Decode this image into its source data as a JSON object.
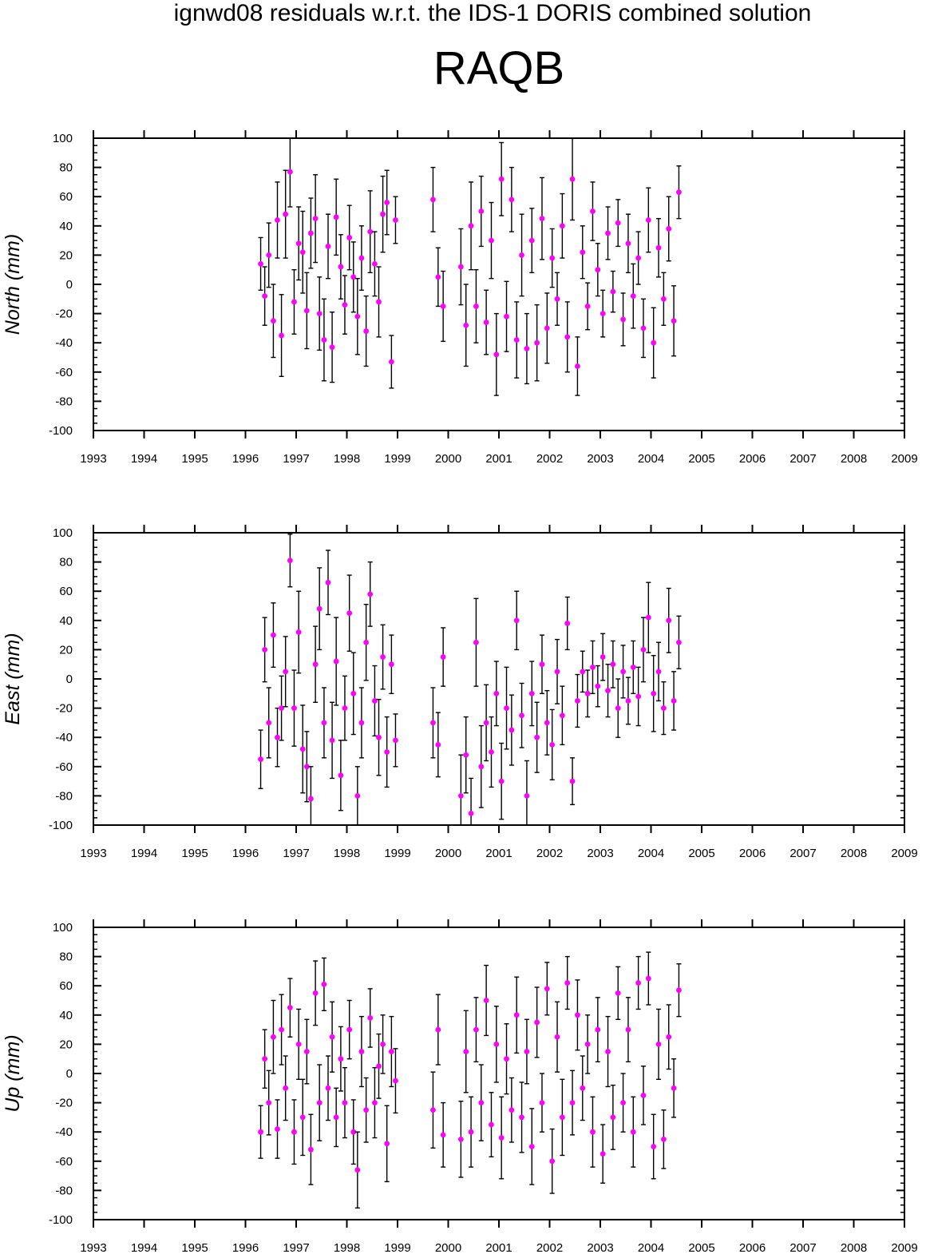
{
  "figure": {
    "title": "ignwd08 residuals w.r.t. the IDS-1 DORIS combined solution",
    "station": "RAQB"
  },
  "colors": {
    "marker": "#ff00ff",
    "errorbar": "#000000",
    "axis": "#000000"
  },
  "chart_data": [
    {
      "type": "scatter",
      "name": "north",
      "ylabel": "North (mm)",
      "xlim": [
        1993,
        2009
      ],
      "ylim": [
        -100,
        100
      ],
      "xticks": [
        1993,
        1994,
        1995,
        1996,
        1997,
        1998,
        1999,
        2000,
        2001,
        2002,
        2003,
        2004,
        2005,
        2006,
        2007,
        2008,
        2009
      ],
      "yticks": [
        -100,
        -80,
        -60,
        -40,
        -20,
        0,
        20,
        40,
        60,
        80,
        100
      ],
      "x": [
        1996.3,
        1996.38,
        1996.46,
        1996.55,
        1996.63,
        1996.71,
        1996.79,
        1996.88,
        1996.96,
        1997.05,
        1997.13,
        1997.21,
        1997.29,
        1997.38,
        1997.46,
        1997.55,
        1997.63,
        1997.71,
        1997.79,
        1997.88,
        1997.96,
        1998.05,
        1998.13,
        1998.21,
        1998.29,
        1998.38,
        1998.46,
        1998.55,
        1998.63,
        1998.71,
        1998.79,
        1998.88,
        1998.96,
        1999.7,
        1999.8,
        1999.9,
        2000.25,
        2000.35,
        2000.45,
        2000.55,
        2000.65,
        2000.75,
        2000.85,
        2000.95,
        2001.05,
        2001.15,
        2001.25,
        2001.35,
        2001.45,
        2001.55,
        2001.65,
        2001.75,
        2001.85,
        2001.95,
        2002.05,
        2002.15,
        2002.25,
        2002.35,
        2002.45,
        2002.55,
        2002.65,
        2002.75,
        2002.85,
        2002.95,
        2003.05,
        2003.15,
        2003.25,
        2003.35,
        2003.45,
        2003.55,
        2003.65,
        2003.75,
        2003.85,
        2003.95,
        2004.05,
        2004.15,
        2004.25,
        2004.35,
        2004.45,
        2004.55
      ],
      "y": [
        14,
        -8,
        20,
        -25,
        44,
        -35,
        48,
        77,
        -12,
        28,
        22,
        -18,
        35,
        45,
        -20,
        -38,
        26,
        -43,
        46,
        12,
        -14,
        32,
        5,
        -22,
        18,
        -32,
        36,
        14,
        -12,
        48,
        56,
        -53,
        44,
        58,
        5,
        -15,
        12,
        -28,
        40,
        -15,
        50,
        -26,
        30,
        -48,
        72,
        -22,
        58,
        -38,
        20,
        -44,
        30,
        -40,
        45,
        -30,
        18,
        -10,
        40,
        -36,
        72,
        -56,
        22,
        -15,
        50,
        10,
        -20,
        35,
        -5,
        42,
        -24,
        28,
        -8,
        18,
        -30,
        44,
        -40,
        25,
        -10,
        38,
        -25,
        63
      ],
      "err": [
        18,
        20,
        22,
        25,
        26,
        28,
        30,
        24,
        22,
        25,
        28,
        26,
        24,
        30,
        25,
        28,
        22,
        24,
        26,
        22,
        20,
        22,
        24,
        26,
        22,
        24,
        28,
        22,
        24,
        26,
        22,
        18,
        16,
        22,
        20,
        24,
        26,
        28,
        30,
        25,
        24,
        22,
        26,
        28,
        25,
        24,
        22,
        26,
        28,
        24,
        22,
        26,
        28,
        24,
        20,
        18,
        22,
        24,
        28,
        20,
        18,
        16,
        20,
        18,
        16,
        18,
        14,
        16,
        18,
        20,
        22,
        18,
        20,
        22,
        24,
        20,
        18,
        22,
        24,
        18
      ]
    },
    {
      "type": "scatter",
      "name": "east",
      "ylabel": "East (mm)",
      "xlim": [
        1993,
        2009
      ],
      "ylim": [
        -100,
        100
      ],
      "xticks": [
        1993,
        1994,
        1995,
        1996,
        1997,
        1998,
        1999,
        2000,
        2001,
        2002,
        2003,
        2004,
        2005,
        2006,
        2007,
        2008,
        2009
      ],
      "yticks": [
        -100,
        -80,
        -60,
        -40,
        -20,
        0,
        20,
        40,
        60,
        80,
        100
      ],
      "x": [
        1996.3,
        1996.38,
        1996.46,
        1996.55,
        1996.63,
        1996.71,
        1996.79,
        1996.88,
        1996.96,
        1997.05,
        1997.13,
        1997.21,
        1997.29,
        1997.38,
        1997.46,
        1997.55,
        1997.63,
        1997.71,
        1997.79,
        1997.88,
        1997.96,
        1998.05,
        1998.13,
        1998.21,
        1998.29,
        1998.38,
        1998.46,
        1998.55,
        1998.63,
        1998.71,
        1998.79,
        1998.88,
        1998.96,
        1999.7,
        1999.8,
        1999.9,
        2000.25,
        2000.35,
        2000.45,
        2000.55,
        2000.65,
        2000.75,
        2000.85,
        2000.95,
        2001.05,
        2001.15,
        2001.25,
        2001.35,
        2001.45,
        2001.55,
        2001.65,
        2001.75,
        2001.85,
        2001.95,
        2002.05,
        2002.15,
        2002.25,
        2002.35,
        2002.45,
        2002.55,
        2002.65,
        2002.75,
        2002.85,
        2002.95,
        2003.05,
        2003.15,
        2003.25,
        2003.35,
        2003.45,
        2003.55,
        2003.65,
        2003.75,
        2003.85,
        2003.95,
        2004.05,
        2004.15,
        2004.25,
        2004.35,
        2004.45,
        2004.55
      ],
      "y": [
        -55,
        20,
        -30,
        30,
        -40,
        -20,
        5,
        81,
        -20,
        32,
        -48,
        -60,
        -82,
        10,
        48,
        -30,
        66,
        -42,
        12,
        -66,
        -20,
        45,
        -10,
        -80,
        -30,
        25,
        58,
        -15,
        -40,
        15,
        -50,
        10,
        -42,
        -30,
        -45,
        15,
        -80,
        -52,
        -92,
        25,
        -60,
        -30,
        -50,
        -10,
        -70,
        -20,
        -35,
        40,
        -25,
        -80,
        -10,
        -40,
        10,
        -30,
        -45,
        5,
        -25,
        38,
        -70,
        -15,
        5,
        -10,
        8,
        -5,
        15,
        -8,
        10,
        -20,
        5,
        -15,
        8,
        -12,
        20,
        42,
        -10,
        5,
        -20,
        40,
        -15,
        25
      ],
      "err": [
        20,
        22,
        24,
        22,
        20,
        22,
        24,
        18,
        26,
        28,
        30,
        24,
        22,
        26,
        28,
        24,
        22,
        26,
        30,
        24,
        22,
        26,
        28,
        20,
        24,
        26,
        22,
        24,
        26,
        22,
        24,
        20,
        18,
        24,
        22,
        20,
        28,
        26,
        24,
        30,
        28,
        26,
        24,
        22,
        26,
        28,
        24,
        20,
        22,
        24,
        22,
        24,
        20,
        22,
        24,
        22,
        20,
        18,
        16,
        18,
        14,
        16,
        18,
        14,
        16,
        18,
        16,
        20,
        18,
        16,
        18,
        20,
        22,
        24,
        26,
        20,
        18,
        22,
        20,
        18
      ]
    },
    {
      "type": "scatter",
      "name": "up",
      "ylabel": "Up (mm)",
      "xlim": [
        1993,
        2009
      ],
      "ylim": [
        -100,
        100
      ],
      "xticks": [
        1993,
        1994,
        1995,
        1996,
        1997,
        1998,
        1999,
        2000,
        2001,
        2002,
        2003,
        2004,
        2005,
        2006,
        2007,
        2008,
        2009
      ],
      "yticks": [
        -100,
        -80,
        -60,
        -40,
        -20,
        0,
        20,
        40,
        60,
        80,
        100
      ],
      "x": [
        1996.3,
        1996.38,
        1996.46,
        1996.55,
        1996.63,
        1996.71,
        1996.79,
        1996.88,
        1996.96,
        1997.05,
        1997.13,
        1997.21,
        1997.29,
        1997.38,
        1997.46,
        1997.55,
        1997.63,
        1997.71,
        1997.79,
        1997.88,
        1997.96,
        1998.05,
        1998.13,
        1998.21,
        1998.29,
        1998.38,
        1998.46,
        1998.55,
        1998.63,
        1998.71,
        1998.79,
        1998.88,
        1998.96,
        1999.7,
        1999.8,
        1999.9,
        2000.25,
        2000.35,
        2000.45,
        2000.55,
        2000.65,
        2000.75,
        2000.85,
        2000.95,
        2001.05,
        2001.15,
        2001.25,
        2001.35,
        2001.45,
        2001.55,
        2001.65,
        2001.75,
        2001.85,
        2001.95,
        2002.05,
        2002.15,
        2002.25,
        2002.35,
        2002.45,
        2002.55,
        2002.65,
        2002.75,
        2002.85,
        2002.95,
        2003.05,
        2003.15,
        2003.25,
        2003.35,
        2003.45,
        2003.55,
        2003.65,
        2003.75,
        2003.85,
        2003.95,
        2004.05,
        2004.15,
        2004.25,
        2004.35,
        2004.45,
        2004.55
      ],
      "y": [
        -40,
        10,
        -20,
        25,
        -38,
        30,
        -10,
        45,
        -40,
        20,
        -30,
        15,
        -52,
        55,
        -20,
        61,
        -10,
        25,
        -30,
        10,
        -20,
        30,
        -40,
        -66,
        15,
        -25,
        38,
        -20,
        5,
        20,
        -48,
        15,
        -5,
        -25,
        30,
        -42,
        -45,
        15,
        -40,
        30,
        -20,
        50,
        -35,
        20,
        -44,
        10,
        -25,
        40,
        -30,
        15,
        -50,
        35,
        -20,
        58,
        -60,
        25,
        -30,
        62,
        -20,
        40,
        -10,
        20,
        -40,
        30,
        -55,
        15,
        -30,
        55,
        -20,
        30,
        -40,
        62,
        -15,
        65,
        -50,
        20,
        -45,
        25,
        -10,
        57
      ],
      "err": [
        18,
        20,
        22,
        25,
        20,
        24,
        22,
        20,
        22,
        24,
        26,
        22,
        24,
        22,
        26,
        18,
        22,
        24,
        20,
        22,
        24,
        20,
        22,
        26,
        24,
        22,
        20,
        24,
        22,
        20,
        26,
        24,
        22,
        26,
        24,
        22,
        26,
        28,
        24,
        22,
        26,
        24,
        22,
        26,
        28,
        24,
        22,
        26,
        24,
        22,
        26,
        24,
        20,
        18,
        22,
        24,
        26,
        18,
        22,
        24,
        22,
        20,
        24,
        22,
        20,
        24,
        22,
        18,
        20,
        22,
        24,
        18,
        20,
        18,
        22,
        24,
        20,
        22,
        20,
        18
      ]
    }
  ]
}
